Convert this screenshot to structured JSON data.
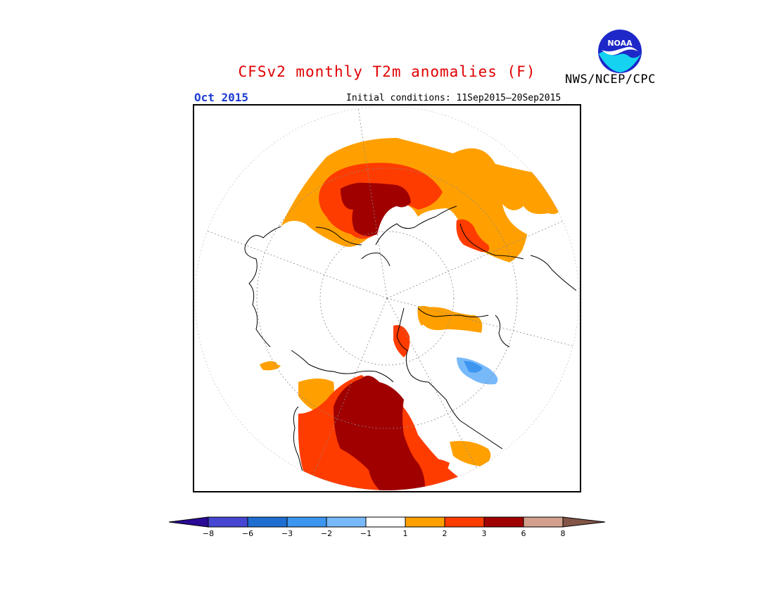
{
  "header": {
    "title": "CFSv2 monthly T2m anomalies (F)",
    "agency": "NWS/NCEP/CPC",
    "month": "Oct 2015",
    "initial_conditions": "Initial conditions: 11Sep2015—20Sep2015",
    "logo_text": "NOAA"
  },
  "legend": {
    "ticks": [
      "−8",
      "−6",
      "−3",
      "−2",
      "−1",
      "1",
      "2",
      "3",
      "6",
      "8"
    ],
    "colors": [
      "#2a0a96",
      "#4646d2",
      "#1e6ed2",
      "#3c96f0",
      "#78b9fa",
      "#ffffff",
      "#ffa000",
      "#ff3c00",
      "#a00000",
      "#d2a08c",
      "#825546"
    ]
  }
}
